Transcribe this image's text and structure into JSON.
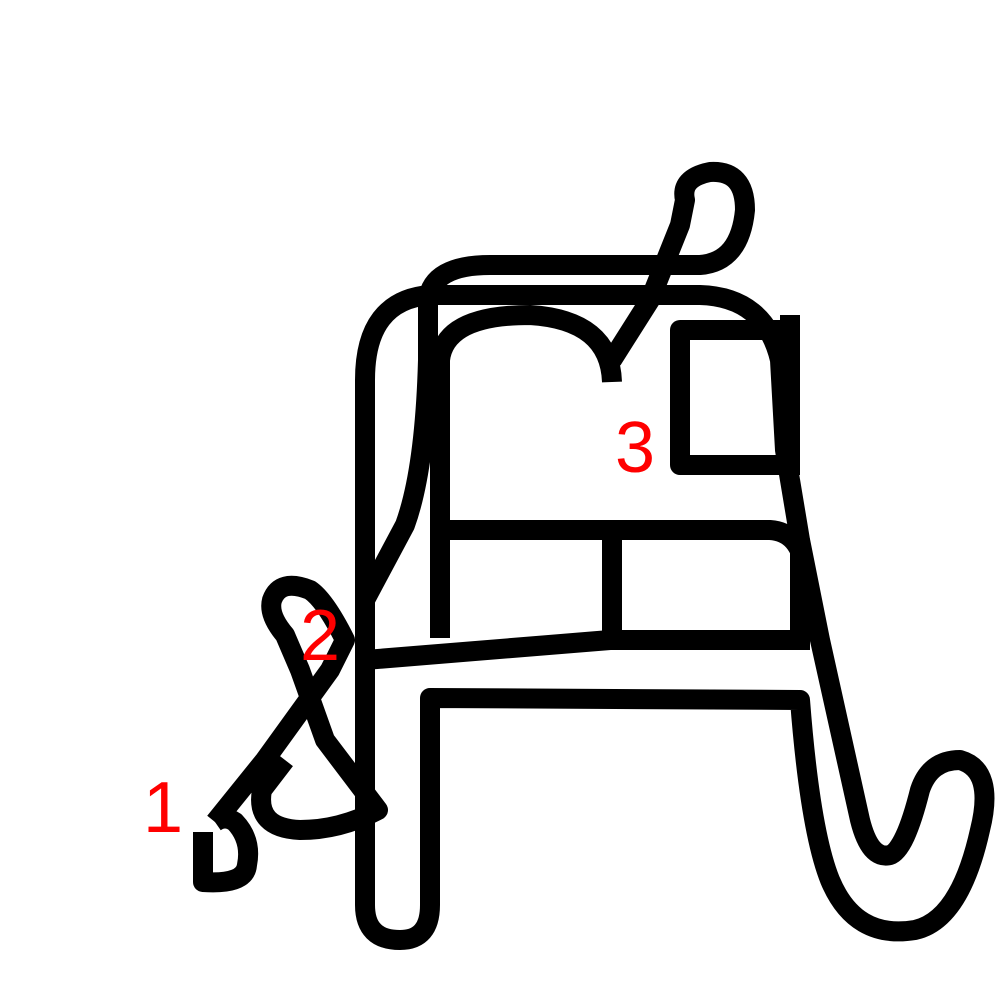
{
  "colors": {
    "background": "#ffffff",
    "stroke": "#000000",
    "marker": "#ff0000"
  },
  "markers": {
    "m1": "1",
    "m2": "2",
    "m3": "3"
  }
}
